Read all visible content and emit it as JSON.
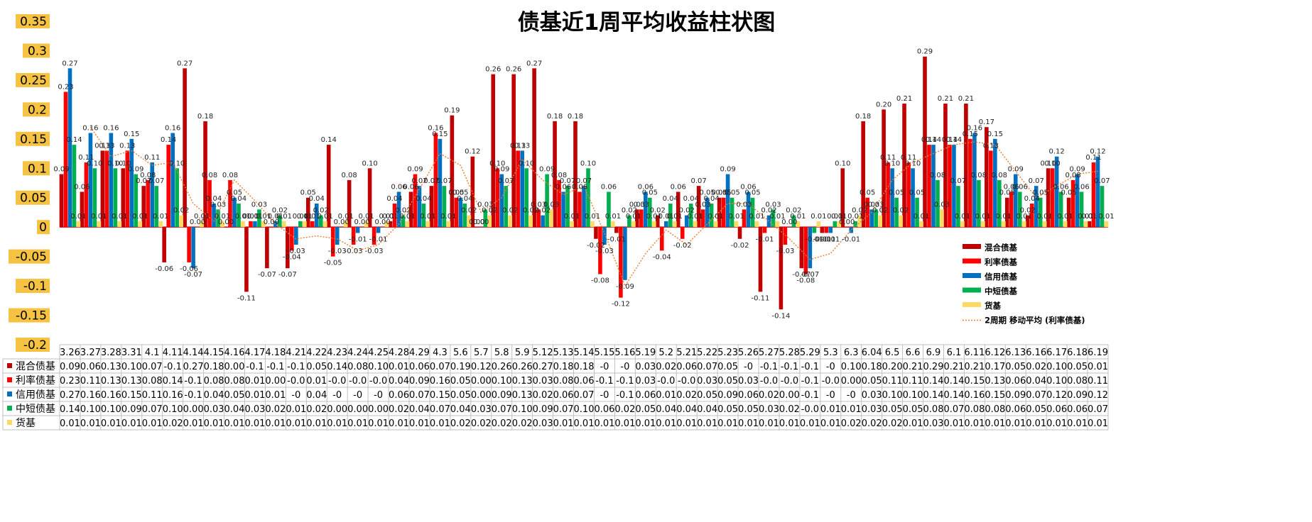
{
  "chart_data": {
    "type": "bar",
    "title": "债基近1周平均收益柱状图",
    "ylim": [
      -0.2,
      0.35
    ],
    "yticks": [
      "0.35",
      "0.3",
      "0.25",
      "0.2",
      "0.15",
      "0.1",
      "0.05",
      "0",
      "-0.05",
      "-0.1",
      "-0.15",
      "-0.2"
    ],
    "grid": false,
    "legend_position": "right",
    "categories": [
      "3.26",
      "3.27",
      "3.28",
      "3.31",
      "4.1",
      "4.11",
      "4.14",
      "4.15",
      "4.16",
      "4.17",
      "4.18",
      "4.21",
      "4.22",
      "4.23",
      "4.24",
      "4.25",
      "4.28",
      "4.29",
      "4.3",
      "5.6",
      "5.7",
      "5.8",
      "5.9",
      "5.12",
      "5.13",
      "5.14",
      "5.15",
      "5.16",
      "5.19",
      "5.2",
      "5.21",
      "5.22",
      "5.23",
      "5.26",
      "5.27",
      "5.28",
      "5.29",
      "5.3",
      "6.3",
      "6.04",
      "6.5",
      "6.6",
      "6.9",
      "6.1",
      "6.11",
      "6.12",
      "6.13",
      "6.16",
      "6.17",
      "6.18",
      "6.19"
    ],
    "series": [
      {
        "name": "混合债基",
        "color": "#c00000",
        "values": [
          0.09,
          0.06,
          0.13,
          0.1,
          0.07,
          -0.06,
          0.27,
          0.18,
          0.0,
          -0.11,
          -0.07,
          -0.07,
          0.05,
          0.14,
          0.08,
          0.1,
          0.01,
          0.06,
          0.07,
          0.19,
          0.12,
          0.26,
          0.26,
          0.27,
          0.18,
          0.18,
          -0.02,
          -0.01,
          0.03,
          0.02,
          0.06,
          0.07,
          0.05,
          -0.02,
          -0.11,
          -0.14,
          -0.07,
          -0.01,
          0.1,
          0.18,
          0.2,
          0.21,
          0.29,
          0.21,
          0.21,
          0.17,
          0.05,
          0.02,
          0.1,
          0.05,
          0.01
        ],
        "row_labels": [
          "0.09",
          "0.06",
          "0.13",
          "0.10",
          "0.07",
          "-0.1",
          "0.27",
          "0.18",
          "0.00",
          "-0.1",
          "-0.1",
          "-0.1",
          "0.05",
          "0.14",
          "0.08",
          "0.10",
          "0.01",
          "0.06",
          "0.07",
          "0.19",
          "0.12",
          "0.26",
          "0.26",
          "0.27",
          "0.18",
          "0.18",
          "-0",
          "-0",
          "0.03",
          "0.02",
          "0.06",
          "0.07",
          "0.05",
          "-0",
          "-0.1",
          "-0.1",
          "-0.1",
          "-0",
          "0.10",
          "0.18",
          "0.20",
          "0.21",
          "0.29",
          "0.21",
          "0.21",
          "0.17",
          "0.05",
          "0.02",
          "0.10",
          "0.05",
          "0.01"
        ]
      },
      {
        "name": "利率债基",
        "color": "#ff0000",
        "values": [
          0.23,
          0.11,
          0.13,
          0.13,
          0.08,
          0.14,
          -0.06,
          0.08,
          0.08,
          0.01,
          0.0,
          -0.04,
          0.01,
          -0.05,
          -0.03,
          -0.03,
          0.04,
          0.09,
          0.16,
          0.05,
          0.0,
          0.1,
          0.13,
          0.03,
          0.08,
          0.06,
          -0.08,
          -0.12,
          0.03,
          -0.04,
          -0.02,
          0.03,
          0.05,
          0.03,
          -0.01,
          -0.03,
          -0.08,
          -0.01,
          0.0,
          0.05,
          0.11,
          0.11,
          0.14,
          0.14,
          0.15,
          0.13,
          0.06,
          0.04,
          0.1,
          0.08,
          0.11
        ],
        "row_labels": [
          "0.23",
          "0.11",
          "0.13",
          "0.13",
          "0.08",
          "0.14",
          "-0.1",
          "0.08",
          "0.08",
          "0.01",
          "0.00",
          "-0.0",
          "0.01",
          "-0.0",
          "-0.0",
          "-0.0",
          "0.04",
          "0.09",
          "0.16",
          "0.05",
          "0.00",
          "0.10",
          "0.13",
          "0.03",
          "0.08",
          "0.06",
          "-0.1",
          "-0.1",
          "0.03",
          "-0.0",
          "-0.0",
          "0.03",
          "0.05",
          "0.03",
          "-0.0",
          "-0.0",
          "-0.1",
          "-0.0",
          "0.00",
          "0.05",
          "0.11",
          "0.11",
          "0.14",
          "0.14",
          "0.15",
          "0.13",
          "0.06",
          "0.04",
          "0.10",
          "0.08",
          "0.11"
        ]
      },
      {
        "name": "信用债基",
        "color": "#0070c0",
        "values": [
          0.27,
          0.16,
          0.16,
          0.15,
          0.11,
          0.16,
          -0.07,
          0.04,
          0.05,
          0.01,
          0.01,
          -0.03,
          0.04,
          -0.03,
          -0.01,
          -0.01,
          0.06,
          0.07,
          0.15,
          0.05,
          0.0,
          0.09,
          0.13,
          0.02,
          0.06,
          0.07,
          -0.03,
          -0.09,
          0.06,
          0.01,
          0.02,
          0.05,
          0.09,
          0.06,
          0.02,
          0.0,
          -0.07,
          -0.01,
          -0.01,
          0.03,
          0.1,
          0.1,
          0.14,
          0.14,
          0.16,
          0.15,
          0.09,
          0.07,
          0.12,
          0.09,
          0.12
        ],
        "row_labels": [
          "0.27",
          "0.16",
          "0.16",
          "0.15",
          "0.11",
          "0.16",
          "-0.1",
          "0.04",
          "0.05",
          "0.01",
          "0.01",
          "-0",
          "0.04",
          "-0",
          "-0",
          "-0",
          "0.06",
          "0.07",
          "0.15",
          "0.05",
          "0.00",
          "0.09",
          "0.13",
          "0.02",
          "0.06",
          "0.07",
          "-0",
          "-0.1",
          "0.06",
          "0.01",
          "0.02",
          "0.05",
          "0.09",
          "0.06",
          "0.02",
          "0.00",
          "-0.1",
          "-0",
          "-0",
          "0.03",
          "0.10",
          "0.10",
          "0.14",
          "0.14",
          "0.16",
          "0.15",
          "0.09",
          "0.07",
          "0.12",
          "0.09",
          "0.12"
        ]
      },
      {
        "name": "中短债基",
        "color": "#00b050",
        "values": [
          0.14,
          0.1,
          0.1,
          0.09,
          0.07,
          0.1,
          0.0,
          0.03,
          0.04,
          0.03,
          0.02,
          0.01,
          0.02,
          0.0,
          0.0,
          0.0,
          0.02,
          0.04,
          0.07,
          0.04,
          0.03,
          0.07,
          0.1,
          0.09,
          0.07,
          0.1,
          0.06,
          0.02,
          0.05,
          0.04,
          0.04,
          0.04,
          0.05,
          0.05,
          0.03,
          0.02,
          -0.01,
          0.01,
          0.01,
          0.03,
          0.05,
          0.05,
          0.08,
          0.07,
          0.08,
          0.08,
          0.06,
          0.05,
          0.06,
          0.06,
          0.07
        ],
        "row_labels": [
          "0.14",
          "0.10",
          "0.10",
          "0.09",
          "0.07",
          "0.10",
          "0.00",
          "0.03",
          "0.04",
          "0.03",
          "0.02",
          "0.01",
          "0.02",
          "0.00",
          "0.00",
          "0.00",
          "0.02",
          "0.04",
          "0.07",
          "0.04",
          "0.03",
          "0.07",
          "0.10",
          "0.09",
          "0.07",
          "0.10",
          "0.06",
          "0.02",
          "0.05",
          "0.04",
          "0.04",
          "0.04",
          "0.05",
          "0.05",
          "0.03",
          "0.02",
          "-0.0",
          "0.01",
          "0.01",
          "0.03",
          "0.05",
          "0.05",
          "0.08",
          "0.07",
          "0.08",
          "0.08",
          "0.06",
          "0.05",
          "0.06",
          "0.06",
          "0.07"
        ]
      },
      {
        "name": "货基",
        "color": "#ffd966",
        "values": [
          0.01,
          0.01,
          0.01,
          0.01,
          0.01,
          0.02,
          0.01,
          0.01,
          0.01,
          0.01,
          0.01,
          0.01,
          0.01,
          0.01,
          0.01,
          0.01,
          0.01,
          0.01,
          0.01,
          0.02,
          0.02,
          0.02,
          0.02,
          0.03,
          0.01,
          0.01,
          0.01,
          0.01,
          0.01,
          0.01,
          0.01,
          0.01,
          0.01,
          0.01,
          0.01,
          0.01,
          0.01,
          0.01,
          0.02,
          0.02,
          0.02,
          0.01,
          0.03,
          0.01,
          0.01,
          0.01,
          0.01,
          0.01,
          0.01,
          0.01,
          0.01
        ],
        "row_labels": [
          "0.01",
          "0.01",
          "0.01",
          "0.01",
          "0.01",
          "0.02",
          "0.01",
          "0.01",
          "0.01",
          "0.01",
          "0.01",
          "0.01",
          "0.01",
          "0.01",
          "0.01",
          "0.01",
          "0.01",
          "0.01",
          "0.01",
          "0.02",
          "0.02",
          "0.02",
          "0.02",
          "0.03",
          "0.01",
          "0.01",
          "0.01",
          "0.01",
          "0.01",
          "0.01",
          "0.01",
          "0.01",
          "0.01",
          "0.01",
          "0.01",
          "0.01",
          "0.01",
          "0.01",
          "0.02",
          "0.02",
          "0.02",
          "0.01",
          "0.03",
          "0.01",
          "0.01",
          "0.01",
          "0.01",
          "0.01",
          "0.01",
          "0.01",
          "0.01"
        ]
      }
    ],
    "trendline": {
      "name": "2周期 移动平均 (利率债基)",
      "color": "#ed7d31",
      "base_series": "利率债基",
      "period": 2
    }
  }
}
